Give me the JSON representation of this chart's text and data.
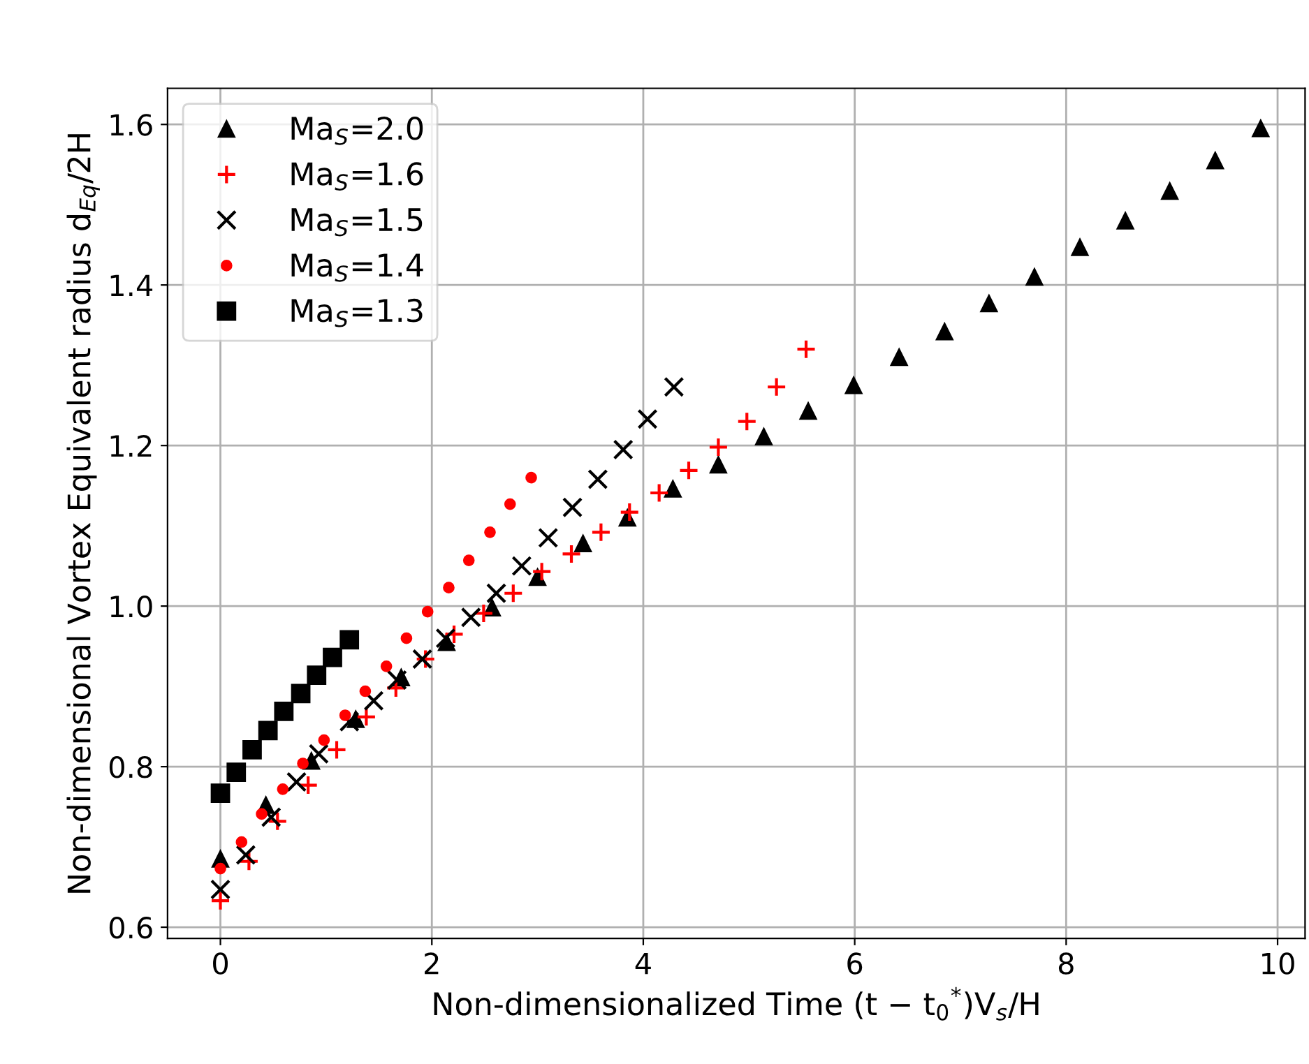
{
  "chart_data": {
    "type": "scatter",
    "xlabel": "Non-dimensionalized Time (t − t$_{0}$$^{*}$)V$_{s}$/H",
    "ylabel": "Non-dimensional Vortex Equivalent radius d$_{Eq}$/2H",
    "xlim": [
      -0.5,
      10.26
    ],
    "ylim": [
      0.586,
      1.645
    ],
    "xticks": [
      0,
      2,
      4,
      6,
      8,
      10
    ],
    "yticks": [
      0.6,
      0.8,
      {
        "value": 1.0,
        "label": "1.0"
      },
      1.2,
      1.4,
      1.6
    ],
    "grid": true,
    "legend": "top left",
    "series": [
      {
        "name": "Ma$_{S}$=2.0",
        "color": "#000000",
        "marker": "triangle",
        "x": [
          0,
          0.43,
          0.86,
          1.28,
          1.71,
          2.14,
          2.57,
          3.0,
          3.43,
          3.85,
          4.28,
          4.71,
          5.14,
          5.56,
          5.99,
          6.42,
          6.85,
          7.27,
          7.7,
          8.13,
          8.56,
          8.98,
          9.41,
          9.84
        ],
        "values": [
          0.685,
          0.752,
          0.807,
          0.859,
          0.911,
          0.955,
          0.998,
          1.036,
          1.078,
          1.11,
          1.146,
          1.176,
          1.211,
          1.243,
          1.275,
          1.31,
          1.342,
          1.377,
          1.41,
          1.447,
          1.48,
          1.517,
          1.555,
          1.595
        ]
      },
      {
        "name": "Ma$_{S}$=1.6",
        "color": "#ff0000",
        "marker": "plus",
        "x": [
          0,
          0.27,
          0.54,
          0.83,
          1.1,
          1.38,
          1.66,
          1.94,
          2.21,
          2.49,
          2.77,
          3.04,
          3.32,
          3.6,
          3.87,
          4.15,
          4.43,
          4.71,
          4.98,
          5.26,
          5.54
        ],
        "values": [
          0.633,
          0.682,
          0.732,
          0.777,
          0.821,
          0.862,
          0.898,
          0.934,
          0.965,
          0.991,
          1.016,
          1.043,
          1.065,
          1.092,
          1.117,
          1.141,
          1.169,
          1.198,
          1.23,
          1.273,
          1.32
        ]
      },
      {
        "name": "Ma$_{S}$=1.5",
        "color": "#000000",
        "marker": "cross",
        "x": [
          0,
          0.24,
          0.48,
          0.72,
          0.93,
          1.22,
          1.45,
          1.67,
          1.91,
          2.13,
          2.37,
          2.61,
          2.85,
          3.1,
          3.33,
          3.57,
          3.81,
          4.04,
          4.29
        ],
        "values": [
          0.647,
          0.69,
          0.737,
          0.781,
          0.816,
          0.856,
          0.882,
          0.908,
          0.934,
          0.96,
          0.986,
          1.016,
          1.05,
          1.085,
          1.123,
          1.158,
          1.195,
          1.233,
          1.273
        ]
      },
      {
        "name": "Ma$_{S}$=1.4",
        "color": "#ff0000",
        "marker": "circle",
        "x": [
          0,
          0.2,
          0.39,
          0.59,
          0.78,
          0.98,
          1.18,
          1.37,
          1.57,
          1.76,
          1.96,
          2.16,
          2.35,
          2.55,
          2.74,
          2.94
        ],
        "values": [
          0.673,
          0.706,
          0.741,
          0.772,
          0.804,
          0.833,
          0.864,
          0.894,
          0.925,
          0.96,
          0.993,
          1.023,
          1.057,
          1.092,
          1.127,
          1.16
        ]
      },
      {
        "name": "Ma$_{S}$=1.3",
        "color": "#000000",
        "marker": "square",
        "x": [
          0,
          0.15,
          0.3,
          0.45,
          0.6,
          0.76,
          0.91,
          1.06,
          1.22
        ],
        "values": [
          0.767,
          0.793,
          0.821,
          0.845,
          0.869,
          0.891,
          0.914,
          0.936,
          0.958
        ]
      }
    ]
  }
}
